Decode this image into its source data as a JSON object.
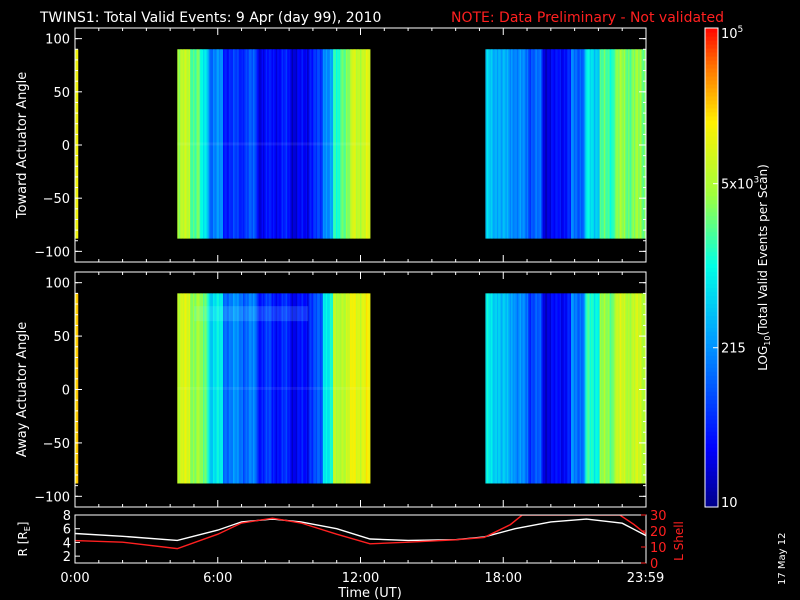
{
  "title": "TWINS1: Total Valid Events:  9 Apr (day  99), 2010",
  "note": "NOTE: Data Preliminary - Not validated",
  "date_stamp": "17 May 12",
  "colors": {
    "background": "#000000",
    "frame": "#ffffff",
    "note": "#ff2020",
    "lshell": "#ff2020",
    "radius": "#ffffff"
  },
  "chart_data": [
    {
      "type": "heatmap",
      "ylabel": "Toward Actuator Angle",
      "ylim": [
        -110,
        110
      ],
      "y_ticks": [
        "100",
        "50",
        "0",
        "−50",
        "−100"
      ],
      "y_tick_values": [
        100,
        50,
        0,
        -50,
        -100
      ],
      "xlim": [
        0,
        24
      ],
      "y_range_covered": [
        -88,
        90
      ],
      "data_intervals_hours": [
        [
          0,
          0.12
        ],
        [
          4.3,
          12.4
        ],
        [
          17.25,
          24
        ]
      ],
      "column_level": [
        [
          0.0,
          0.74
        ],
        [
          0.12,
          null
        ],
        [
          4.3,
          0.68
        ],
        [
          4.8,
          0.6
        ],
        [
          5.2,
          0.45
        ],
        [
          5.6,
          0.3
        ],
        [
          6.2,
          0.18
        ],
        [
          7.0,
          0.22
        ],
        [
          7.6,
          0.12
        ],
        [
          8.2,
          0.14
        ],
        [
          9.0,
          0.1
        ],
        [
          9.8,
          0.18
        ],
        [
          10.4,
          0.35
        ],
        [
          10.8,
          0.5
        ],
        [
          11.1,
          0.62
        ],
        [
          11.6,
          0.72
        ],
        [
          12.4,
          null
        ],
        [
          17.25,
          0.4
        ],
        [
          17.8,
          0.35
        ],
        [
          18.5,
          0.3
        ],
        [
          19.0,
          0.25
        ],
        [
          19.6,
          0.1
        ],
        [
          20.2,
          0.15
        ],
        [
          20.8,
          0.28
        ],
        [
          21.4,
          0.45
        ],
        [
          22.0,
          0.55
        ],
        [
          22.6,
          0.62
        ],
        [
          24.0,
          0.62
        ]
      ]
    },
    {
      "type": "heatmap",
      "ylabel": "Away Actuator Angle",
      "ylim": [
        -110,
        110
      ],
      "y_ticks": [
        "100",
        "50",
        "0",
        "−50",
        "−100"
      ],
      "y_tick_values": [
        100,
        50,
        0,
        -50,
        -100
      ],
      "xlim": [
        0,
        24
      ],
      "y_range_covered": [
        -88,
        90
      ],
      "data_intervals_hours": [
        [
          0,
          0.12
        ],
        [
          4.3,
          12.4
        ],
        [
          17.25,
          24
        ]
      ],
      "column_level": [
        [
          0.0,
          0.8
        ],
        [
          0.12,
          null
        ],
        [
          4.3,
          0.72
        ],
        [
          4.8,
          0.66
        ],
        [
          5.2,
          0.58
        ],
        [
          5.6,
          0.45
        ],
        [
          6.2,
          0.3
        ],
        [
          7.0,
          0.28
        ],
        [
          7.6,
          0.18
        ],
        [
          8.2,
          0.16
        ],
        [
          9.0,
          0.12
        ],
        [
          9.8,
          0.22
        ],
        [
          10.4,
          0.5
        ],
        [
          10.8,
          0.66
        ],
        [
          11.1,
          0.72
        ],
        [
          11.6,
          0.76
        ],
        [
          12.4,
          null
        ],
        [
          17.25,
          0.45
        ],
        [
          17.8,
          0.38
        ],
        [
          18.5,
          0.3
        ],
        [
          19.0,
          0.22
        ],
        [
          19.6,
          0.1
        ],
        [
          20.2,
          0.14
        ],
        [
          20.8,
          0.3
        ],
        [
          21.4,
          0.52
        ],
        [
          22.0,
          0.62
        ],
        [
          22.6,
          0.7
        ],
        [
          24.0,
          0.72
        ]
      ]
    },
    {
      "type": "line",
      "xlabel": "Time (UT)",
      "x_ticks": [
        "0:00",
        "6:00",
        "12:00",
        "18:00",
        "23:59"
      ],
      "x_tick_values": [
        0,
        6,
        12,
        18,
        23.98
      ],
      "xlim": [
        0,
        24
      ],
      "ylabel_left": "R [R",
      "ylabel_left_sub": "E",
      "ylabel_left_end": "]",
      "ylim_left": [
        1,
        8
      ],
      "yticks_left": [
        "8",
        "6",
        "4",
        "2"
      ],
      "yticks_left_values": [
        8,
        6,
        4,
        2
      ],
      "ylabel_right": "L Shell",
      "ylim_right": [
        0,
        30
      ],
      "yticks_right": [
        "30",
        "20",
        "10",
        "0"
      ],
      "yticks_right_values": [
        30,
        20,
        10,
        0
      ],
      "series": [
        {
          "axis": "left",
          "x": [
            0,
            2,
            4.3,
            6,
            7,
            8.3,
            9.5,
            11,
            12.4,
            14,
            16,
            17.2,
            18.5,
            20,
            21.5,
            23,
            24
          ],
          "y": [
            5.3,
            4.9,
            4.3,
            5.8,
            7.0,
            7.4,
            7.0,
            6.0,
            4.5,
            4.3,
            4.4,
            4.8,
            6.0,
            7.0,
            7.4,
            6.8,
            5.0
          ]
        },
        {
          "axis": "right",
          "x": [
            0,
            2,
            4.3,
            6,
            7,
            8.3,
            9.5,
            11,
            12.4,
            14,
            16,
            17.2,
            18.3,
            18.8,
            21,
            22.9,
            23.5,
            24
          ],
          "y": [
            14,
            13,
            9,
            18,
            25,
            28,
            25,
            18,
            12,
            13,
            14.5,
            16,
            24,
            30,
            30,
            30,
            24,
            18
          ]
        }
      ]
    }
  ],
  "colorbar": {
    "label": "LOG",
    "label_sub": "10",
    "label_end": "(Total Valid  Events per Scan)",
    "ticks": [
      {
        "base": "10",
        "exp": "5",
        "value_log": 5.0
      },
      {
        "base": "5x10",
        "exp": "3",
        "value_log": 3.7
      },
      {
        "base": "215",
        "exp": "",
        "value_log": 2.33
      },
      {
        "base": "10",
        "exp": "",
        "value_log": 1.0
      }
    ],
    "range_log": [
      1.0,
      5.0
    ]
  }
}
